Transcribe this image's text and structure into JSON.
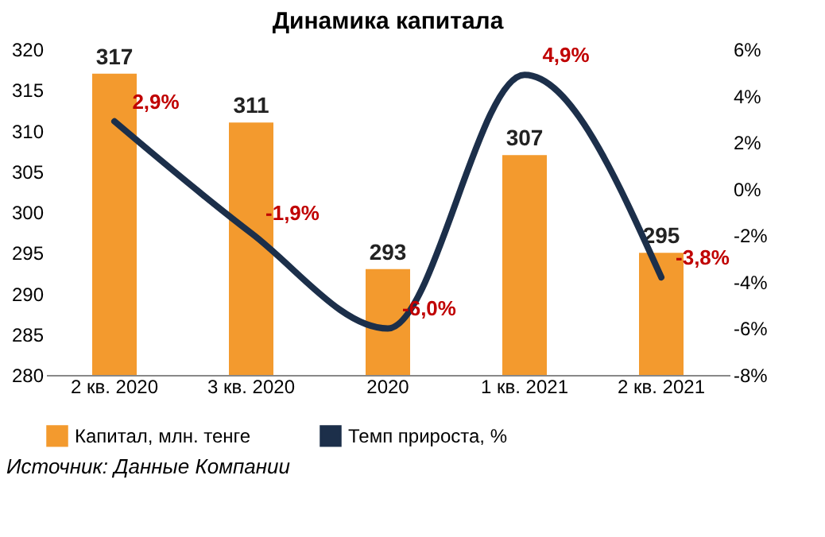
{
  "chart_data": {
    "type": "bar",
    "title": "Динамика капитала",
    "categories": [
      "2 кв. 2020",
      "3 кв. 2020",
      "2020",
      "1 кв. 2021",
      "2 кв. 2021"
    ],
    "series": [
      {
        "name": "Капитал, млн. тенге",
        "color": "#f39a2e",
        "values": [
          317,
          311,
          293,
          307,
          295
        ],
        "value_labels": [
          "317",
          "311",
          "293",
          "307",
          "295"
        ]
      },
      {
        "name": "Темп прироста, %",
        "type": "line",
        "axis": "y2",
        "color": "#1c2f4a",
        "values": [
          2.9,
          -1.9,
          -6.0,
          4.9,
          -3.8
        ],
        "value_labels": [
          "2,9%",
          "-1,9%",
          "-6,0%",
          "4,9%",
          "-3,8%"
        ]
      }
    ],
    "ylim": [
      280,
      320
    ],
    "yticks": [
      280,
      285,
      290,
      295,
      300,
      305,
      310,
      315,
      320
    ],
    "y2lim": [
      -8,
      6
    ],
    "y2ticks": [
      {
        "value": -8,
        "label": "-8%"
      },
      {
        "value": -6,
        "label": "-6%"
      },
      {
        "value": -4,
        "label": "-4%"
      },
      {
        "value": -2,
        "label": "-2%"
      },
      {
        "value": 0,
        "label": "0%"
      },
      {
        "value": 2,
        "label": "2%"
      },
      {
        "value": 4,
        "label": "4%"
      },
      {
        "value": 6,
        "label": "6%"
      }
    ],
    "legend": "bottom",
    "grid": false,
    "annotations": [
      "Источник: Данные Компании"
    ]
  }
}
